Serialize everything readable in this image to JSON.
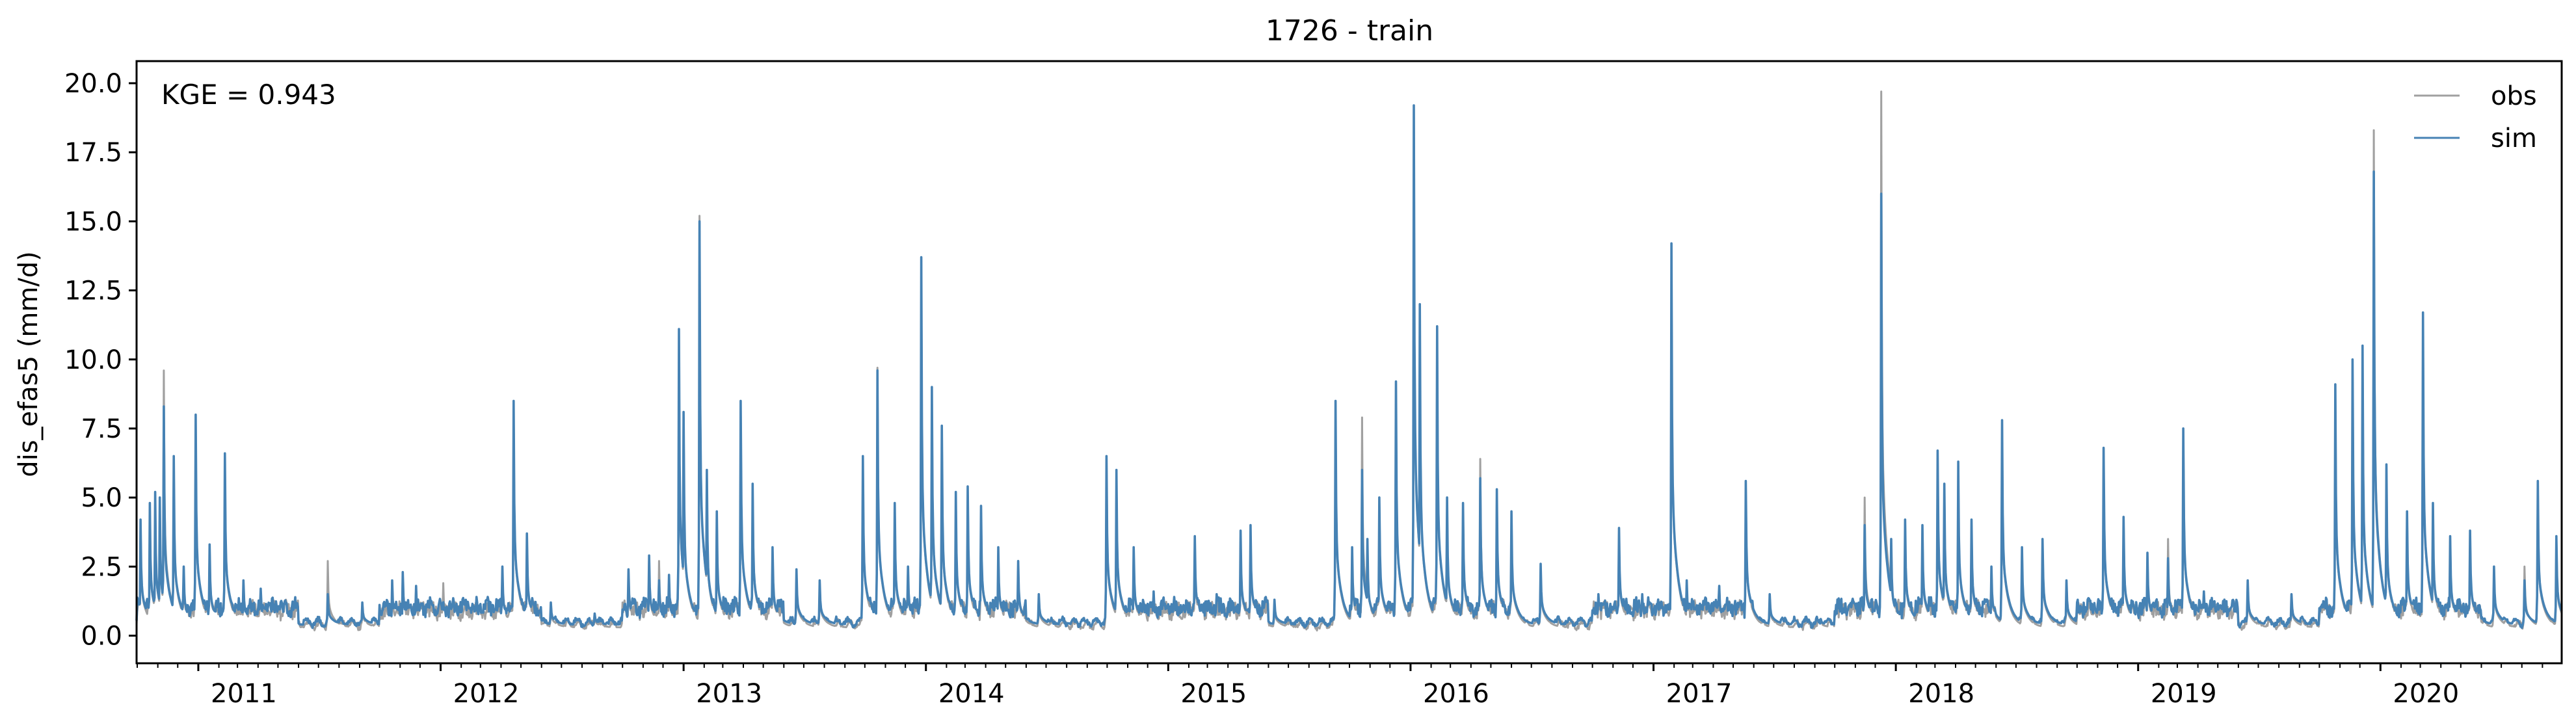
{
  "chart_data": {
    "type": "line",
    "title": "1726 - train",
    "xlabel": "",
    "ylabel": "dis_efas5 (mm/d)",
    "annotation": "KGE = 0.943",
    "xlim": [
      "2010-09-30",
      "2020-09-30"
    ],
    "ylim": [
      -1.0,
      20.8
    ],
    "yticks": [
      0.0,
      2.5,
      5.0,
      7.5,
      10.0,
      12.5,
      15.0,
      17.5,
      20.0
    ],
    "ytick_labels": [
      "0.0",
      "2.5",
      "5.0",
      "7.5",
      "10.0",
      "12.5",
      "15.0",
      "17.5",
      "20.0"
    ],
    "xticks": [
      "2011-01-01",
      "2012-01-01",
      "2013-01-01",
      "2014-01-01",
      "2015-01-01",
      "2016-01-01",
      "2017-01-01",
      "2018-01-01",
      "2019-01-01",
      "2020-01-01"
    ],
    "xtick_labels": [
      "2011",
      "2012",
      "2013",
      "2014",
      "2015",
      "2016",
      "2017",
      "2018",
      "2019",
      "2020"
    ],
    "minor_ticks": "monthly",
    "grid": false,
    "legend": {
      "position": "top-right",
      "entries": [
        "obs",
        "sim"
      ]
    },
    "series": [
      {
        "name": "obs",
        "color": "#a0a0a0",
        "baseline": 0.3,
        "peaks": [
          [
            "2010-10-06",
            4.2
          ],
          [
            "2010-10-20",
            4.8
          ],
          [
            "2010-10-28",
            5.2
          ],
          [
            "2010-11-04",
            5.0
          ],
          [
            "2010-11-10",
            9.6
          ],
          [
            "2010-11-25",
            6.5
          ],
          [
            "2010-12-10",
            2.5
          ],
          [
            "2010-12-28",
            8.0
          ],
          [
            "2011-01-18",
            3.3
          ],
          [
            "2011-02-10",
            6.6
          ],
          [
            "2011-03-10",
            2.0
          ],
          [
            "2011-04-05",
            1.7
          ],
          [
            "2011-05-01",
            1.0
          ],
          [
            "2011-07-15",
            2.7
          ],
          [
            "2011-09-05",
            1.2
          ],
          [
            "2011-10-20",
            2.0
          ],
          [
            "2011-11-05",
            2.3
          ],
          [
            "2011-11-25",
            1.8
          ],
          [
            "2012-01-05",
            1.9
          ],
          [
            "2012-02-15",
            1.0
          ],
          [
            "2012-04-03",
            2.5
          ],
          [
            "2012-04-20",
            8.5
          ],
          [
            "2012-05-10",
            3.7
          ],
          [
            "2012-06-15",
            1.2
          ],
          [
            "2012-08-20",
            0.8
          ],
          [
            "2012-10-10",
            2.4
          ],
          [
            "2012-11-10",
            2.9
          ],
          [
            "2012-11-25",
            2.7
          ],
          [
            "2012-12-10",
            2.2
          ],
          [
            "2012-12-25",
            11.1
          ],
          [
            "2013-01-01",
            8.1
          ],
          [
            "2013-01-25",
            15.2
          ],
          [
            "2013-02-05",
            6.0
          ],
          [
            "2013-02-20",
            4.5
          ],
          [
            "2013-03-28",
            8.5
          ],
          [
            "2013-04-15",
            5.5
          ],
          [
            "2013-05-15",
            3.2
          ],
          [
            "2013-06-20",
            2.4
          ],
          [
            "2013-07-25",
            2.0
          ],
          [
            "2013-09-28",
            6.5
          ],
          [
            "2013-10-20",
            9.7
          ],
          [
            "2013-11-15",
            4.8
          ],
          [
            "2013-12-05",
            2.5
          ],
          [
            "2013-12-25",
            13.7
          ],
          [
            "2014-01-10",
            9.0
          ],
          [
            "2014-01-25",
            7.6
          ],
          [
            "2014-02-15",
            5.2
          ],
          [
            "2014-03-05",
            5.4
          ],
          [
            "2014-03-25",
            4.7
          ],
          [
            "2014-04-20",
            3.2
          ],
          [
            "2014-05-20",
            2.7
          ],
          [
            "2014-06-20",
            1.5
          ],
          [
            "2014-09-30",
            6.5
          ],
          [
            "2014-10-15",
            6.0
          ],
          [
            "2014-11-10",
            3.2
          ],
          [
            "2014-12-10",
            1.6
          ],
          [
            "2015-02-10",
            3.6
          ],
          [
            "2015-03-15",
            1.5
          ],
          [
            "2015-04-20",
            3.8
          ],
          [
            "2015-05-05",
            4.0
          ],
          [
            "2015-06-10",
            1.3
          ],
          [
            "2015-09-10",
            8.5
          ],
          [
            "2015-10-05",
            3.2
          ],
          [
            "2015-10-20",
            7.9
          ],
          [
            "2015-10-28",
            3.5
          ],
          [
            "2015-11-15",
            5.0
          ],
          [
            "2015-12-10",
            9.2
          ],
          [
            "2016-01-06",
            19.2
          ],
          [
            "2016-01-15",
            12.0
          ],
          [
            "2016-02-10",
            11.2
          ],
          [
            "2016-02-25",
            5.0
          ],
          [
            "2016-03-20",
            4.8
          ],
          [
            "2016-04-15",
            6.4
          ],
          [
            "2016-05-10",
            5.3
          ],
          [
            "2016-06-01",
            4.5
          ],
          [
            "2016-07-15",
            2.6
          ],
          [
            "2016-10-10",
            1.5
          ],
          [
            "2016-11-10",
            3.9
          ],
          [
            "2016-12-15",
            1.5
          ],
          [
            "2017-01-28",
            14.2
          ],
          [
            "2017-02-20",
            2.0
          ],
          [
            "2017-04-10",
            1.8
          ],
          [
            "2017-05-20",
            5.6
          ],
          [
            "2017-06-25",
            1.5
          ],
          [
            "2017-09-10",
            0.6
          ],
          [
            "2017-11-15",
            5.0
          ],
          [
            "2017-12-10",
            19.7
          ],
          [
            "2017-12-25",
            3.5
          ],
          [
            "2018-01-15",
            4.2
          ],
          [
            "2018-02-10",
            4.0
          ],
          [
            "2018-03-05",
            6.7
          ],
          [
            "2018-03-15",
            5.5
          ],
          [
            "2018-04-05",
            6.3
          ],
          [
            "2018-04-25",
            4.2
          ],
          [
            "2018-05-25",
            2.5
          ],
          [
            "2018-06-10",
            7.8
          ],
          [
            "2018-07-10",
            3.2
          ],
          [
            "2018-08-10",
            3.5
          ],
          [
            "2018-09-15",
            2.0
          ],
          [
            "2018-11-10",
            6.8
          ],
          [
            "2018-12-10",
            4.3
          ],
          [
            "2019-01-15",
            3.0
          ],
          [
            "2019-02-15",
            3.5
          ],
          [
            "2019-03-10",
            7.5
          ],
          [
            "2019-04-10",
            1.6
          ],
          [
            "2019-06-15",
            2.0
          ],
          [
            "2019-08-20",
            1.5
          ],
          [
            "2019-10-25",
            9.1
          ],
          [
            "2019-11-20",
            10.0
          ],
          [
            "2019-12-05",
            10.5
          ],
          [
            "2019-12-22",
            18.3
          ],
          [
            "2020-01-10",
            6.2
          ],
          [
            "2020-02-10",
            4.5
          ],
          [
            "2020-03-05",
            11.7
          ],
          [
            "2020-03-20",
            4.8
          ],
          [
            "2020-04-15",
            3.6
          ],
          [
            "2020-05-15",
            3.8
          ],
          [
            "2020-06-20",
            2.5
          ],
          [
            "2020-08-05",
            2.5
          ],
          [
            "2020-08-25",
            5.6
          ],
          [
            "2020-09-22",
            3.6
          ]
        ]
      },
      {
        "name": "sim",
        "color": "#4682b4",
        "baseline": 0.4,
        "peaks": [
          [
            "2010-10-06",
            4.2
          ],
          [
            "2010-10-20",
            4.8
          ],
          [
            "2010-10-28",
            5.2
          ],
          [
            "2010-11-04",
            5.0
          ],
          [
            "2010-11-10",
            8.3
          ],
          [
            "2010-11-25",
            6.5
          ],
          [
            "2010-12-10",
            2.5
          ],
          [
            "2010-12-28",
            8.0
          ],
          [
            "2011-01-18",
            3.3
          ],
          [
            "2011-02-10",
            6.6
          ],
          [
            "2011-03-10",
            2.0
          ],
          [
            "2011-04-05",
            1.7
          ],
          [
            "2011-05-01",
            1.0
          ],
          [
            "2011-07-15",
            1.5
          ],
          [
            "2011-09-05",
            1.2
          ],
          [
            "2011-10-20",
            2.0
          ],
          [
            "2011-11-05",
            2.3
          ],
          [
            "2011-11-25",
            1.8
          ],
          [
            "2012-01-05",
            1.0
          ],
          [
            "2012-02-15",
            1.0
          ],
          [
            "2012-04-03",
            2.5
          ],
          [
            "2012-04-20",
            8.5
          ],
          [
            "2012-05-10",
            3.7
          ],
          [
            "2012-06-15",
            1.2
          ],
          [
            "2012-08-20",
            0.8
          ],
          [
            "2012-10-10",
            2.4
          ],
          [
            "2012-11-10",
            2.9
          ],
          [
            "2012-11-25",
            2.0
          ],
          [
            "2012-12-10",
            2.2
          ],
          [
            "2012-12-25",
            11.1
          ],
          [
            "2013-01-01",
            8.1
          ],
          [
            "2013-01-25",
            15.0
          ],
          [
            "2013-02-05",
            6.0
          ],
          [
            "2013-02-20",
            4.5
          ],
          [
            "2013-03-28",
            8.5
          ],
          [
            "2013-04-15",
            5.5
          ],
          [
            "2013-05-15",
            3.2
          ],
          [
            "2013-06-20",
            2.4
          ],
          [
            "2013-07-25",
            2.0
          ],
          [
            "2013-09-28",
            6.5
          ],
          [
            "2013-10-20",
            9.6
          ],
          [
            "2013-11-15",
            4.8
          ],
          [
            "2013-12-05",
            2.5
          ],
          [
            "2013-12-25",
            13.7
          ],
          [
            "2014-01-10",
            9.0
          ],
          [
            "2014-01-25",
            7.6
          ],
          [
            "2014-02-15",
            5.2
          ],
          [
            "2014-03-05",
            5.4
          ],
          [
            "2014-03-25",
            4.7
          ],
          [
            "2014-04-20",
            3.2
          ],
          [
            "2014-05-20",
            2.7
          ],
          [
            "2014-06-20",
            1.5
          ],
          [
            "2014-09-30",
            6.5
          ],
          [
            "2014-10-15",
            6.0
          ],
          [
            "2014-11-10",
            3.2
          ],
          [
            "2014-12-10",
            1.6
          ],
          [
            "2015-02-10",
            3.6
          ],
          [
            "2015-03-15",
            1.5
          ],
          [
            "2015-04-20",
            3.8
          ],
          [
            "2015-05-05",
            4.0
          ],
          [
            "2015-06-10",
            1.3
          ],
          [
            "2015-09-10",
            8.5
          ],
          [
            "2015-10-05",
            3.2
          ],
          [
            "2015-10-20",
            6.0
          ],
          [
            "2015-10-28",
            3.5
          ],
          [
            "2015-11-15",
            5.0
          ],
          [
            "2015-12-10",
            9.2
          ],
          [
            "2016-01-06",
            19.2
          ],
          [
            "2016-01-15",
            12.0
          ],
          [
            "2016-02-10",
            11.2
          ],
          [
            "2016-02-25",
            5.0
          ],
          [
            "2016-03-20",
            4.8
          ],
          [
            "2016-04-15",
            5.7
          ],
          [
            "2016-05-10",
            5.3
          ],
          [
            "2016-06-01",
            4.5
          ],
          [
            "2016-07-15",
            2.6
          ],
          [
            "2016-10-10",
            1.5
          ],
          [
            "2016-11-10",
            3.9
          ],
          [
            "2016-12-15",
            1.5
          ],
          [
            "2017-01-28",
            14.2
          ],
          [
            "2017-02-20",
            2.0
          ],
          [
            "2017-04-10",
            1.8
          ],
          [
            "2017-05-20",
            5.6
          ],
          [
            "2017-06-25",
            1.5
          ],
          [
            "2017-09-10",
            0.6
          ],
          [
            "2017-11-15",
            4.0
          ],
          [
            "2017-12-10",
            16.0
          ],
          [
            "2017-12-25",
            3.5
          ],
          [
            "2018-01-15",
            4.2
          ],
          [
            "2018-02-10",
            4.0
          ],
          [
            "2018-03-05",
            6.7
          ],
          [
            "2018-03-15",
            5.5
          ],
          [
            "2018-04-05",
            6.3
          ],
          [
            "2018-04-25",
            4.2
          ],
          [
            "2018-05-25",
            2.5
          ],
          [
            "2018-06-10",
            7.8
          ],
          [
            "2018-07-10",
            3.2
          ],
          [
            "2018-08-10",
            3.5
          ],
          [
            "2018-09-15",
            2.0
          ],
          [
            "2018-11-10",
            6.8
          ],
          [
            "2018-12-10",
            4.3
          ],
          [
            "2019-01-15",
            3.0
          ],
          [
            "2019-02-15",
            2.8
          ],
          [
            "2019-03-10",
            7.5
          ],
          [
            "2019-04-10",
            1.6
          ],
          [
            "2019-06-15",
            2.0
          ],
          [
            "2019-08-20",
            1.5
          ],
          [
            "2019-10-25",
            9.1
          ],
          [
            "2019-11-20",
            10.0
          ],
          [
            "2019-12-05",
            10.5
          ],
          [
            "2019-12-22",
            16.8
          ],
          [
            "2020-01-10",
            6.2
          ],
          [
            "2020-02-10",
            4.5
          ],
          [
            "2020-03-05",
            11.7
          ],
          [
            "2020-03-20",
            4.8
          ],
          [
            "2020-04-15",
            3.6
          ],
          [
            "2020-05-15",
            3.8
          ],
          [
            "2020-06-20",
            2.5
          ],
          [
            "2020-08-05",
            2.0
          ],
          [
            "2020-08-25",
            5.6
          ],
          [
            "2020-09-22",
            3.6
          ]
        ]
      }
    ]
  }
}
